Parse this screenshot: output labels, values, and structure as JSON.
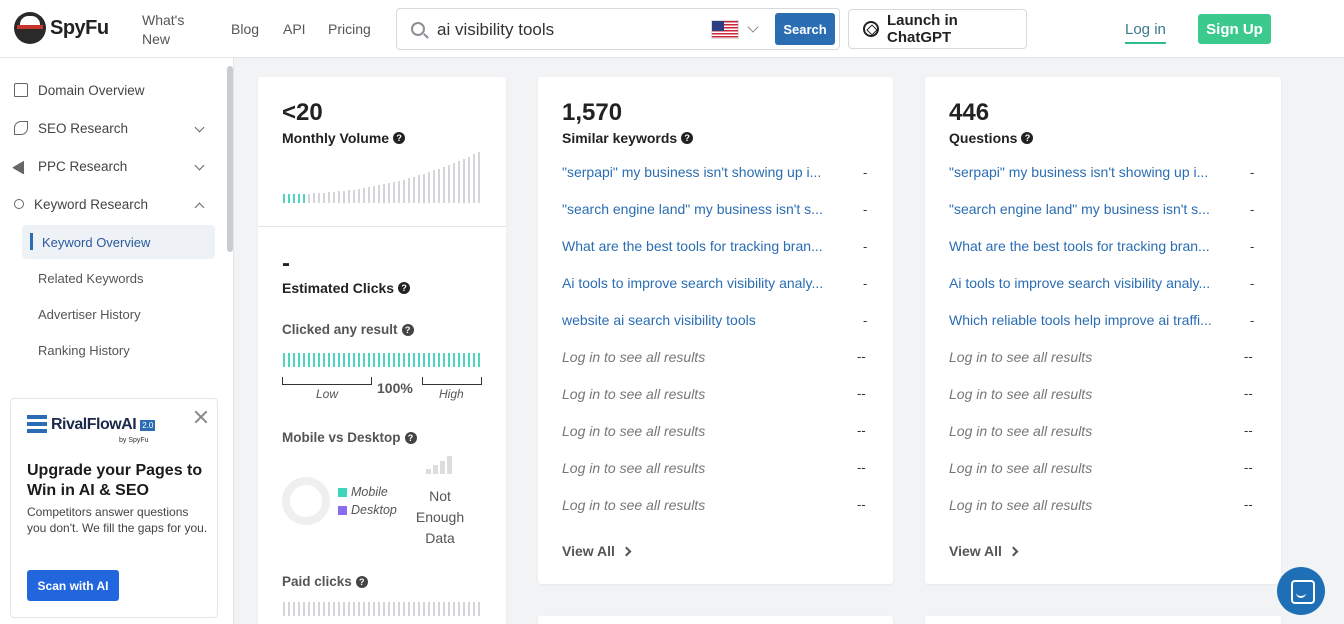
{
  "header": {
    "brand": "SpyFu",
    "nav": {
      "whats_new": "What's New",
      "blog": "Blog",
      "api": "API",
      "pricing": "Pricing"
    },
    "search": {
      "value": "ai visibility tools",
      "button": "Search",
      "country_icon": "us-flag-icon"
    },
    "chatgpt_button": "Launch in ChatGPT",
    "login": "Log in",
    "signup": "Sign Up"
  },
  "sidebar": {
    "items": [
      {
        "label": "Domain Overview",
        "icon": "home-icon"
      },
      {
        "label": "SEO Research",
        "icon": "seedling-icon"
      },
      {
        "label": "PPC Research",
        "icon": "paper-plane-icon"
      },
      {
        "label": "Keyword Research",
        "icon": "key-icon"
      }
    ],
    "subitems": [
      {
        "label": "Keyword Overview",
        "active": true
      },
      {
        "label": "Related Keywords"
      },
      {
        "label": "Advertiser History"
      },
      {
        "label": "Ranking History"
      }
    ]
  },
  "promo": {
    "brand": "RivalFlowAI",
    "version": "2.0",
    "by": "by SpyFu",
    "title": "Upgrade your Pages to Win in AI & SEO",
    "text": "Competitors answer questions you don't. We fill the gaps for you.",
    "button": "Scan with AI"
  },
  "volume_card": {
    "value": "<20",
    "label": "Monthly Volume",
    "clicks_value": "-",
    "clicks_label": "Estimated Clicks",
    "clicked_any_label": "Clicked any result",
    "clicked_any_pct": "100%",
    "low": "Low",
    "high": "High",
    "mobile_desktop_label": "Mobile vs Desktop",
    "mobile": "Mobile",
    "desktop": "Desktop",
    "not_enough": "Not Enough Data",
    "paid_clicks_label": "Paid clicks",
    "colors": {
      "mobile": "#3dd6bc",
      "desktop": "#8a6cf0",
      "teal": "#4ed4c0"
    }
  },
  "similar_card": {
    "value": "1,570",
    "label": "Similar keywords",
    "rows": [
      {
        "text": "\"serpapi\" my business isn't showing up i...",
        "val": "-"
      },
      {
        "text": "\"search engine land\" my business isn't s...",
        "val": "-"
      },
      {
        "text": "What are the best tools for tracking bran...",
        "val": "-"
      },
      {
        "text": "Ai tools to improve search visibility analy...",
        "val": "-"
      },
      {
        "text": "website ai search visibility tools",
        "val": "-"
      }
    ],
    "locked": "Log in to see all results",
    "locked_val": "--",
    "view_all": "View All"
  },
  "questions_card": {
    "value": "446",
    "label": "Questions",
    "rows": [
      {
        "text": "\"serpapi\" my business isn't showing up i...",
        "val": "-"
      },
      {
        "text": "\"search engine land\" my business isn't s...",
        "val": "-"
      },
      {
        "text": "What are the best tools for tracking bran...",
        "val": "-"
      },
      {
        "text": "Ai tools to improve search visibility analy...",
        "val": "-"
      },
      {
        "text": "Which reliable tools help improve ai traffi...",
        "val": "-"
      }
    ],
    "locked": "Log in to see all results",
    "locked_val": "--",
    "view_all": "View All"
  }
}
